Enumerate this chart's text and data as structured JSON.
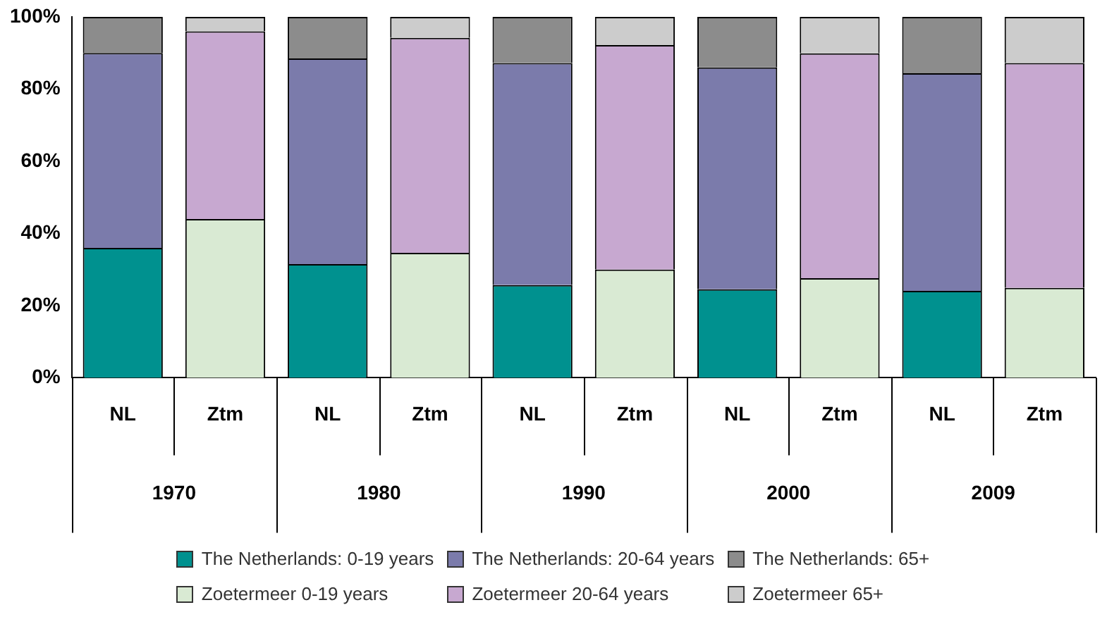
{
  "chart_data": {
    "type": "bar",
    "stacked": true,
    "grid": false,
    "legend": "bottom",
    "categories": [
      "NL",
      "Ztm",
      "NL",
      "Ztm",
      "NL",
      "Ztm",
      "NL",
      "Ztm",
      "NL",
      "Ztm"
    ],
    "annotations": [
      "1970",
      "1980",
      "1990",
      "2000",
      "2009"
    ],
    "ylim": [
      0,
      100
    ],
    "yticks": [
      {
        "value": 0,
        "label": "0%"
      },
      {
        "value": 20,
        "label": "20%"
      },
      {
        "value": 40,
        "label": "40%"
      },
      {
        "value": 60,
        "label": "60%"
      },
      {
        "value": 80,
        "label": "80%"
      },
      {
        "value": 100,
        "label": "100%"
      }
    ],
    "series": [
      {
        "name": "The Netherlands: 0-19 years",
        "color": "#00918f",
        "values": [
          36,
          null,
          31.5,
          null,
          25.7,
          null,
          24.5,
          null,
          24.1,
          null
        ]
      },
      {
        "name": "The Netherlands: 20-64 years",
        "color": "#7b7bab",
        "values": [
          54,
          null,
          57,
          null,
          61.5,
          null,
          61.5,
          null,
          60.3,
          null
        ]
      },
      {
        "name": "The Netherlands: 65+",
        "color": "#8c8c8c",
        "values": [
          10,
          null,
          11.5,
          null,
          12.8,
          null,
          14,
          null,
          15.6,
          null
        ]
      },
      {
        "name": "Zoetermeer 0-19 years",
        "color": "#d9ead3",
        "values": [
          null,
          44,
          null,
          34.6,
          null,
          30,
          null,
          27.6,
          null,
          24.9
        ]
      },
      {
        "name": "Zoetermeer 20-64 years",
        "color": "#c7a8d0",
        "values": [
          null,
          52,
          null,
          59.6,
          null,
          62.2,
          null,
          62.3,
          null,
          62.3
        ]
      },
      {
        "name": "Zoetermeer 65+",
        "color": "#cccccc",
        "values": [
          null,
          4,
          null,
          5.8,
          null,
          7.8,
          null,
          10.1,
          null,
          12.8
        ]
      }
    ]
  }
}
